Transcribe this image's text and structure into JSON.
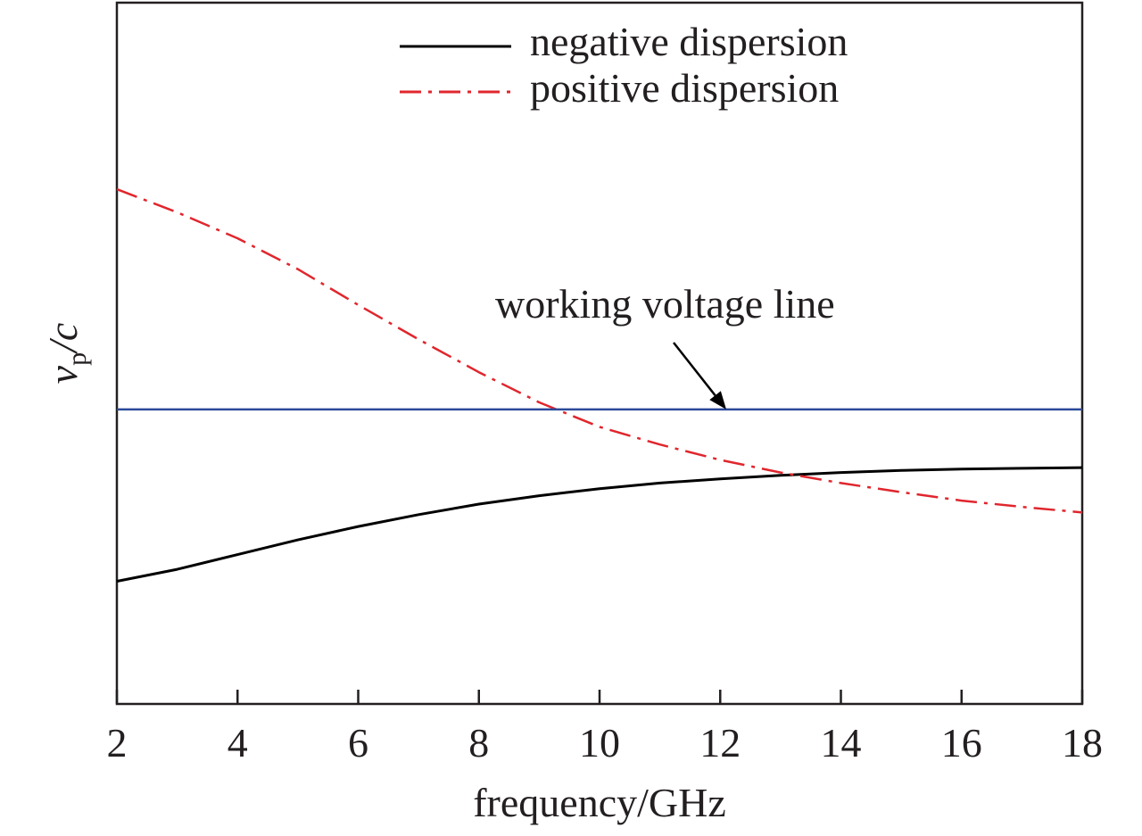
{
  "chart_data": {
    "type": "line",
    "title": "",
    "xlabel": "frequency/GHz",
    "ylabel": {
      "main": "v",
      "sub": "p",
      "suffix": "/c"
    },
    "xlim": [
      2,
      18
    ],
    "ylim": [
      0,
      1
    ],
    "y_ticks_shown": false,
    "x_ticks": [
      2,
      4,
      6,
      8,
      10,
      12,
      14,
      16,
      18
    ],
    "x_tick_labels": [
      "2",
      "4",
      "6",
      "8",
      "10",
      "12",
      "14",
      "16",
      "18"
    ],
    "grid": false,
    "legend_position": "top-right",
    "x": [
      2,
      3,
      4,
      5,
      6,
      7,
      8,
      9,
      10,
      11,
      12,
      13,
      14,
      15,
      16,
      17,
      18
    ],
    "series": [
      {
        "name": "negative dispersion",
        "color": "#000000",
        "style": "solid",
        "values": [
          0.175,
          0.192,
          0.213,
          0.234,
          0.253,
          0.27,
          0.285,
          0.297,
          0.307,
          0.315,
          0.321,
          0.326,
          0.33,
          0.333,
          0.335,
          0.336,
          0.337
        ]
      },
      {
        "name": "positive dispersion",
        "color": "#e0262d",
        "style": "dashdot",
        "values": [
          0.734,
          0.701,
          0.664,
          0.62,
          0.569,
          0.52,
          0.473,
          0.43,
          0.395,
          0.37,
          0.348,
          0.33,
          0.315,
          0.302,
          0.29,
          0.281,
          0.273
        ]
      },
      {
        "name": "working voltage line",
        "color": "#2b4a9a",
        "style": "solid",
        "values": [
          0.42,
          0.42,
          0.42,
          0.42,
          0.42,
          0.42,
          0.42,
          0.42,
          0.42,
          0.42,
          0.42,
          0.42,
          0.42,
          0.42,
          0.42,
          0.42,
          0.42
        ]
      }
    ],
    "legend": [
      "negative dispersion",
      "positive dispersion"
    ],
    "annotation": {
      "text": "working voltage line",
      "points_to_x": 12.1,
      "points_to_y": 0.42
    }
  }
}
